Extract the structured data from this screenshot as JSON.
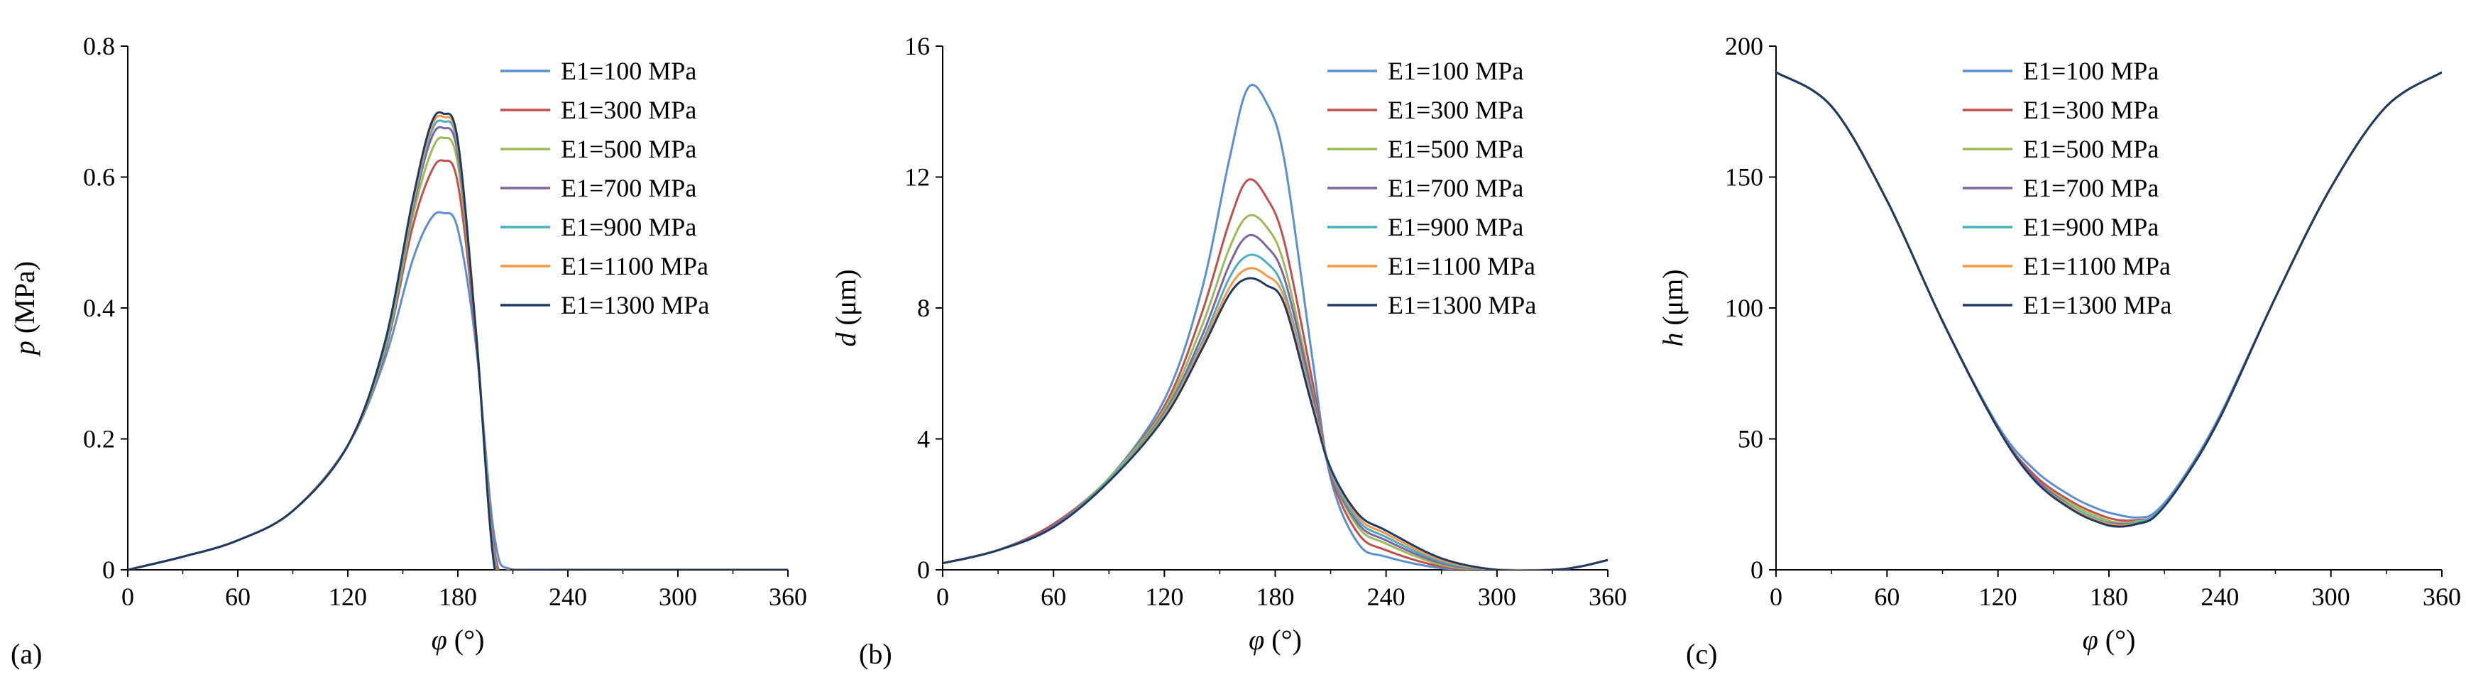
{
  "colors": {
    "E1=100 MPa": "#5b8fd0",
    "E1=300 MPa": "#c0504d",
    "E1=500 MPa": "#9bbb59",
    "E1=700 MPa": "#8064a2",
    "E1=900 MPa": "#4bacc6",
    "E1=1100 MPa": "#f79646",
    "E1=1300 MPa": "#1f3a60"
  },
  "chart_data": [
    {
      "type": "line",
      "panel_label": "(a)",
      "xlabel_sym": "φ",
      "xlabel_unit": " (°)",
      "ylabel_sym": "p",
      "ylabel_unit": " (MPa)",
      "xlim": [
        0,
        360
      ],
      "ylim": [
        0,
        0.8
      ],
      "xticks": [
        "0",
        "60",
        "120",
        "180",
        "240",
        "300",
        "360"
      ],
      "yticks": [
        "0",
        "0.2",
        "0.4",
        "0.6",
        "0.8"
      ],
      "x": [
        0,
        30,
        60,
        90,
        120,
        140,
        155,
        165,
        172,
        180,
        190,
        200,
        210,
        240,
        300,
        360
      ],
      "series": [
        {
          "name": "E1=100 MPa",
          "values": [
            0,
            0.02,
            0.045,
            0.09,
            0.19,
            0.32,
            0.47,
            0.535,
            0.545,
            0.52,
            0.34,
            0.05,
            0,
            0,
            0,
            0
          ]
        },
        {
          "name": "E1=300 MPa",
          "values": [
            0,
            0.02,
            0.045,
            0.09,
            0.19,
            0.33,
            0.52,
            0.605,
            0.625,
            0.59,
            0.35,
            0.03,
            0,
            0,
            0,
            0
          ]
        },
        {
          "name": "E1=500 MPa",
          "values": [
            0,
            0.02,
            0.045,
            0.09,
            0.19,
            0.335,
            0.535,
            0.635,
            0.66,
            0.62,
            0.36,
            0.02,
            0,
            0,
            0,
            0
          ]
        },
        {
          "name": "E1=700 MPa",
          "values": [
            0,
            0.02,
            0.045,
            0.09,
            0.19,
            0.34,
            0.545,
            0.655,
            0.675,
            0.635,
            0.36,
            0.015,
            0,
            0,
            0,
            0
          ]
        },
        {
          "name": "E1=900 MPa",
          "values": [
            0,
            0.02,
            0.045,
            0.09,
            0.19,
            0.34,
            0.55,
            0.665,
            0.685,
            0.645,
            0.36,
            0.01,
            0,
            0,
            0,
            0
          ]
        },
        {
          "name": "E1=1100 MPa",
          "values": [
            0,
            0.02,
            0.045,
            0.09,
            0.19,
            0.345,
            0.555,
            0.672,
            0.692,
            0.65,
            0.36,
            0.005,
            0,
            0,
            0,
            0
          ]
        },
        {
          "name": "E1=1300 MPa",
          "values": [
            0,
            0.02,
            0.045,
            0.09,
            0.19,
            0.345,
            0.56,
            0.678,
            0.697,
            0.655,
            0.36,
            0.003,
            0,
            0,
            0,
            0
          ]
        }
      ]
    },
    {
      "type": "line",
      "panel_label": "(b)",
      "xlabel_sym": "φ",
      "xlabel_unit": " (°)",
      "ylabel_sym": "d",
      "ylabel_unit": " (μm)",
      "xlim": [
        0,
        360
      ],
      "ylim": [
        0,
        16
      ],
      "xticks": [
        "0",
        "60",
        "120",
        "180",
        "240",
        "300",
        "360"
      ],
      "yticks": [
        "0",
        "4",
        "8",
        "12",
        "16"
      ],
      "x": [
        0,
        30,
        60,
        90,
        120,
        140,
        155,
        165,
        175,
        185,
        200,
        210,
        225,
        240,
        270,
        300,
        330,
        345,
        360
      ],
      "series": [
        {
          "name": "E1=100 MPa",
          "values": [
            0.2,
            0.6,
            1.4,
            2.8,
            5.2,
            8.5,
            12.5,
            14.7,
            14.3,
            12.5,
            6.5,
            2.8,
            0.8,
            0.4,
            0.05,
            0,
            0,
            0.1,
            0.3
          ]
        },
        {
          "name": "E1=300 MPa",
          "values": [
            0.2,
            0.6,
            1.4,
            2.8,
            5.0,
            7.8,
            10.6,
            11.9,
            11.4,
            10.0,
            5.8,
            2.9,
            1.1,
            0.6,
            0.1,
            0,
            0,
            0.1,
            0.3
          ]
        },
        {
          "name": "E1=500 MPa",
          "values": [
            0.2,
            0.6,
            1.35,
            2.8,
            4.9,
            7.4,
            9.8,
            10.8,
            10.5,
            9.3,
            5.5,
            3.0,
            1.3,
            0.8,
            0.15,
            0,
            0,
            0.1,
            0.3
          ]
        },
        {
          "name": "E1=700 MPa",
          "values": [
            0.2,
            0.6,
            1.35,
            2.75,
            4.8,
            7.1,
            9.3,
            10.2,
            9.9,
            8.9,
            5.4,
            3.0,
            1.4,
            0.9,
            0.2,
            0,
            0,
            0.1,
            0.3
          ]
        },
        {
          "name": "E1=900 MPa",
          "values": [
            0.2,
            0.6,
            1.3,
            2.75,
            4.75,
            6.9,
            8.9,
            9.6,
            9.4,
            8.5,
            5.2,
            3.0,
            1.5,
            1.0,
            0.25,
            0,
            0,
            0.1,
            0.3
          ]
        },
        {
          "name": "E1=1100 MPa",
          "values": [
            0.2,
            0.6,
            1.3,
            2.7,
            4.7,
            6.8,
            8.6,
            9.2,
            9.0,
            8.3,
            5.1,
            3.1,
            1.6,
            1.1,
            0.3,
            0,
            0,
            0.1,
            0.3
          ]
        },
        {
          "name": "E1=1300 MPa",
          "values": [
            0.2,
            0.6,
            1.3,
            2.7,
            4.65,
            6.7,
            8.4,
            8.9,
            8.7,
            8.1,
            5.0,
            3.1,
            1.7,
            1.2,
            0.35,
            0,
            0,
            0.1,
            0.3
          ]
        }
      ]
    },
    {
      "type": "line",
      "panel_label": "(c)",
      "xlabel_sym": "φ",
      "xlabel_unit": " (°)",
      "ylabel_sym": "h",
      "ylabel_unit": " (μm)",
      "xlim": [
        0,
        360
      ],
      "ylim": [
        0,
        200
      ],
      "xticks": [
        "0",
        "60",
        "120",
        "180",
        "240",
        "300",
        "360"
      ],
      "yticks": [
        "0",
        "50",
        "100",
        "150",
        "200"
      ],
      "x": [
        0,
        30,
        60,
        90,
        120,
        140,
        160,
        175,
        185,
        195,
        205,
        220,
        240,
        270,
        300,
        330,
        360
      ],
      "series": [
        {
          "name": "E1=100 MPa",
          "values": [
            190,
            177,
            141,
            95,
            55,
            38,
            28,
            23,
            21,
            20,
            22,
            35,
            59,
            104,
            146,
            177,
            190
          ]
        },
        {
          "name": "E1=300 MPa",
          "values": [
            190,
            177,
            141,
            95,
            54,
            36,
            26,
            21,
            19,
            19,
            21,
            34,
            58,
            104,
            146,
            177,
            190
          ]
        },
        {
          "name": "E1=500 MPa",
          "values": [
            190,
            177,
            141,
            95,
            54,
            35,
            25,
            20,
            18,
            18.5,
            21,
            34,
            58,
            104,
            146,
            177,
            190
          ]
        },
        {
          "name": "E1=700 MPa",
          "values": [
            190,
            177,
            141,
            95,
            54,
            35,
            24,
            19,
            17.5,
            18,
            21,
            34,
            58,
            104,
            146,
            177,
            190
          ]
        },
        {
          "name": "E1=900 MPa",
          "values": [
            190,
            177,
            141,
            95,
            54,
            34,
            24,
            19,
            17,
            18,
            21,
            34,
            58,
            104,
            146,
            177,
            190
          ]
        },
        {
          "name": "E1=1100 MPa",
          "values": [
            190,
            177,
            141,
            95,
            54,
            34,
            23.5,
            18.5,
            17,
            17.5,
            20.5,
            34,
            58,
            104,
            146,
            177,
            190
          ]
        },
        {
          "name": "E1=1300 MPa",
          "values": [
            190,
            177,
            141,
            95,
            54,
            34,
            23,
            18,
            16.5,
            17.5,
            20.5,
            34,
            58,
            104,
            146,
            177,
            190
          ]
        }
      ]
    }
  ]
}
